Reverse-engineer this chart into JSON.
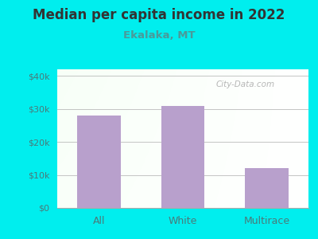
{
  "title": "Median per capita income in 2022",
  "subtitle": "Ekalaka, MT",
  "categories": [
    "All",
    "White",
    "Multirace"
  ],
  "values": [
    28000,
    31000,
    12000
  ],
  "bar_color": "#b8a0cc",
  "outer_bg": "#00EEEE",
  "title_color": "#333333",
  "subtitle_color": "#4a9a9a",
  "tick_color": "#4a7a7a",
  "ylim": [
    0,
    42000
  ],
  "yticks": [
    0,
    10000,
    20000,
    30000,
    40000
  ],
  "ytick_labels": [
    "$0",
    "$10k",
    "$20k",
    "$30k",
    "$40k"
  ],
  "watermark": "City-Data.com",
  "gradient_top": "#e8f5e8",
  "gradient_right": "#f8faf8",
  "gradient_topleft": "#d8efe8"
}
